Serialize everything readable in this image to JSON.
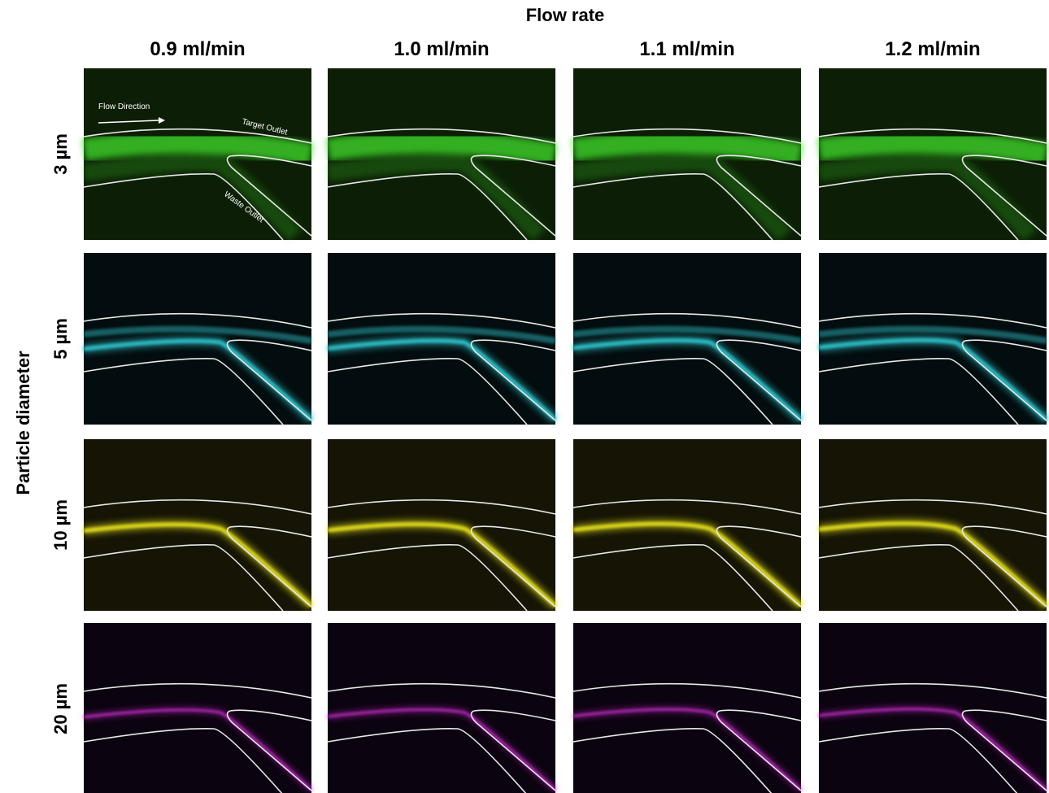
{
  "header": {
    "title": "Flow rate",
    "columns": [
      "0.9 ml/min",
      "1.0 ml/min",
      "1.1 ml/min",
      "1.2 ml/min"
    ]
  },
  "y_axis_label": "Particle diameter",
  "rows": [
    "3 µm",
    "5 µm",
    "10 µm",
    "20 µm"
  ],
  "annotations": {
    "flow_direction": "Flow Direction",
    "target_outlet": "Target Outlet",
    "waste_outlet": "Waste Outlet"
  }
}
